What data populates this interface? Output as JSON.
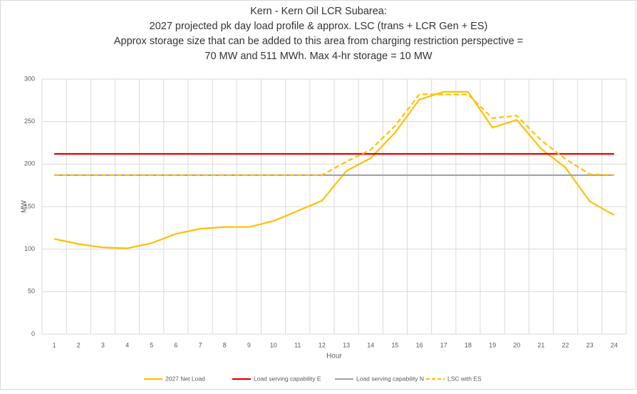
{
  "chart_data": {
    "type": "line",
    "title_lines": [
      "Kern - Kern Oil LCR Subarea:",
      "2027 projected pk day load profile & approx. LSC (trans + LCR Gen + ES)",
      "Approx storage size that can be added to this area from charging restriction perspective =",
      "70 MW and 511 MWh. Max 4-hr storage = 10 MW"
    ],
    "x_label": "Hour",
    "y_label": "MW",
    "categories": [
      "1",
      "2",
      "3",
      "4",
      "5",
      "6",
      "7",
      "8",
      "9",
      "10",
      "11",
      "12",
      "13",
      "14",
      "15",
      "16",
      "17",
      "18",
      "19",
      "20",
      "21",
      "22",
      "23",
      "24"
    ],
    "series": [
      {
        "name": "2027 Net Load",
        "color": "#ffc000",
        "dashed": false,
        "values": [
          112,
          106,
          102,
          101,
          107,
          118,
          124,
          126,
          126,
          133,
          145,
          157,
          192,
          207,
          237,
          276,
          285,
          285,
          243,
          252,
          218,
          196,
          156,
          140
        ]
      },
      {
        "name": "Load serving capability E",
        "color": "#e60000",
        "dashed": false,
        "values": [
          212,
          212,
          212,
          212,
          212,
          212,
          212,
          212,
          212,
          212,
          212,
          212,
          212,
          212,
          212,
          212,
          212,
          212,
          212,
          212,
          212,
          212,
          212,
          212
        ]
      },
      {
        "name": "Load serving capability N",
        "color": "#a5a5a5",
        "dashed": false,
        "values": [
          187,
          187,
          187,
          187,
          187,
          187,
          187,
          187,
          187,
          187,
          187,
          187,
          187,
          187,
          187,
          187,
          187,
          187,
          187,
          187,
          187,
          187,
          187,
          187
        ]
      },
      {
        "name": "LSC with ES",
        "color": "#ffc000",
        "dashed": true,
        "values": [
          187,
          187,
          187,
          187,
          187,
          187,
          187,
          187,
          187,
          187,
          187,
          187,
          203,
          217,
          245,
          282,
          282,
          282,
          254,
          257,
          228,
          206,
          188,
          187
        ]
      }
    ],
    "ylim": [
      0,
      300
    ],
    "yticks": [
      0,
      50,
      100,
      150,
      200,
      250,
      300
    ],
    "grid": true,
    "legend": "bottom"
  }
}
